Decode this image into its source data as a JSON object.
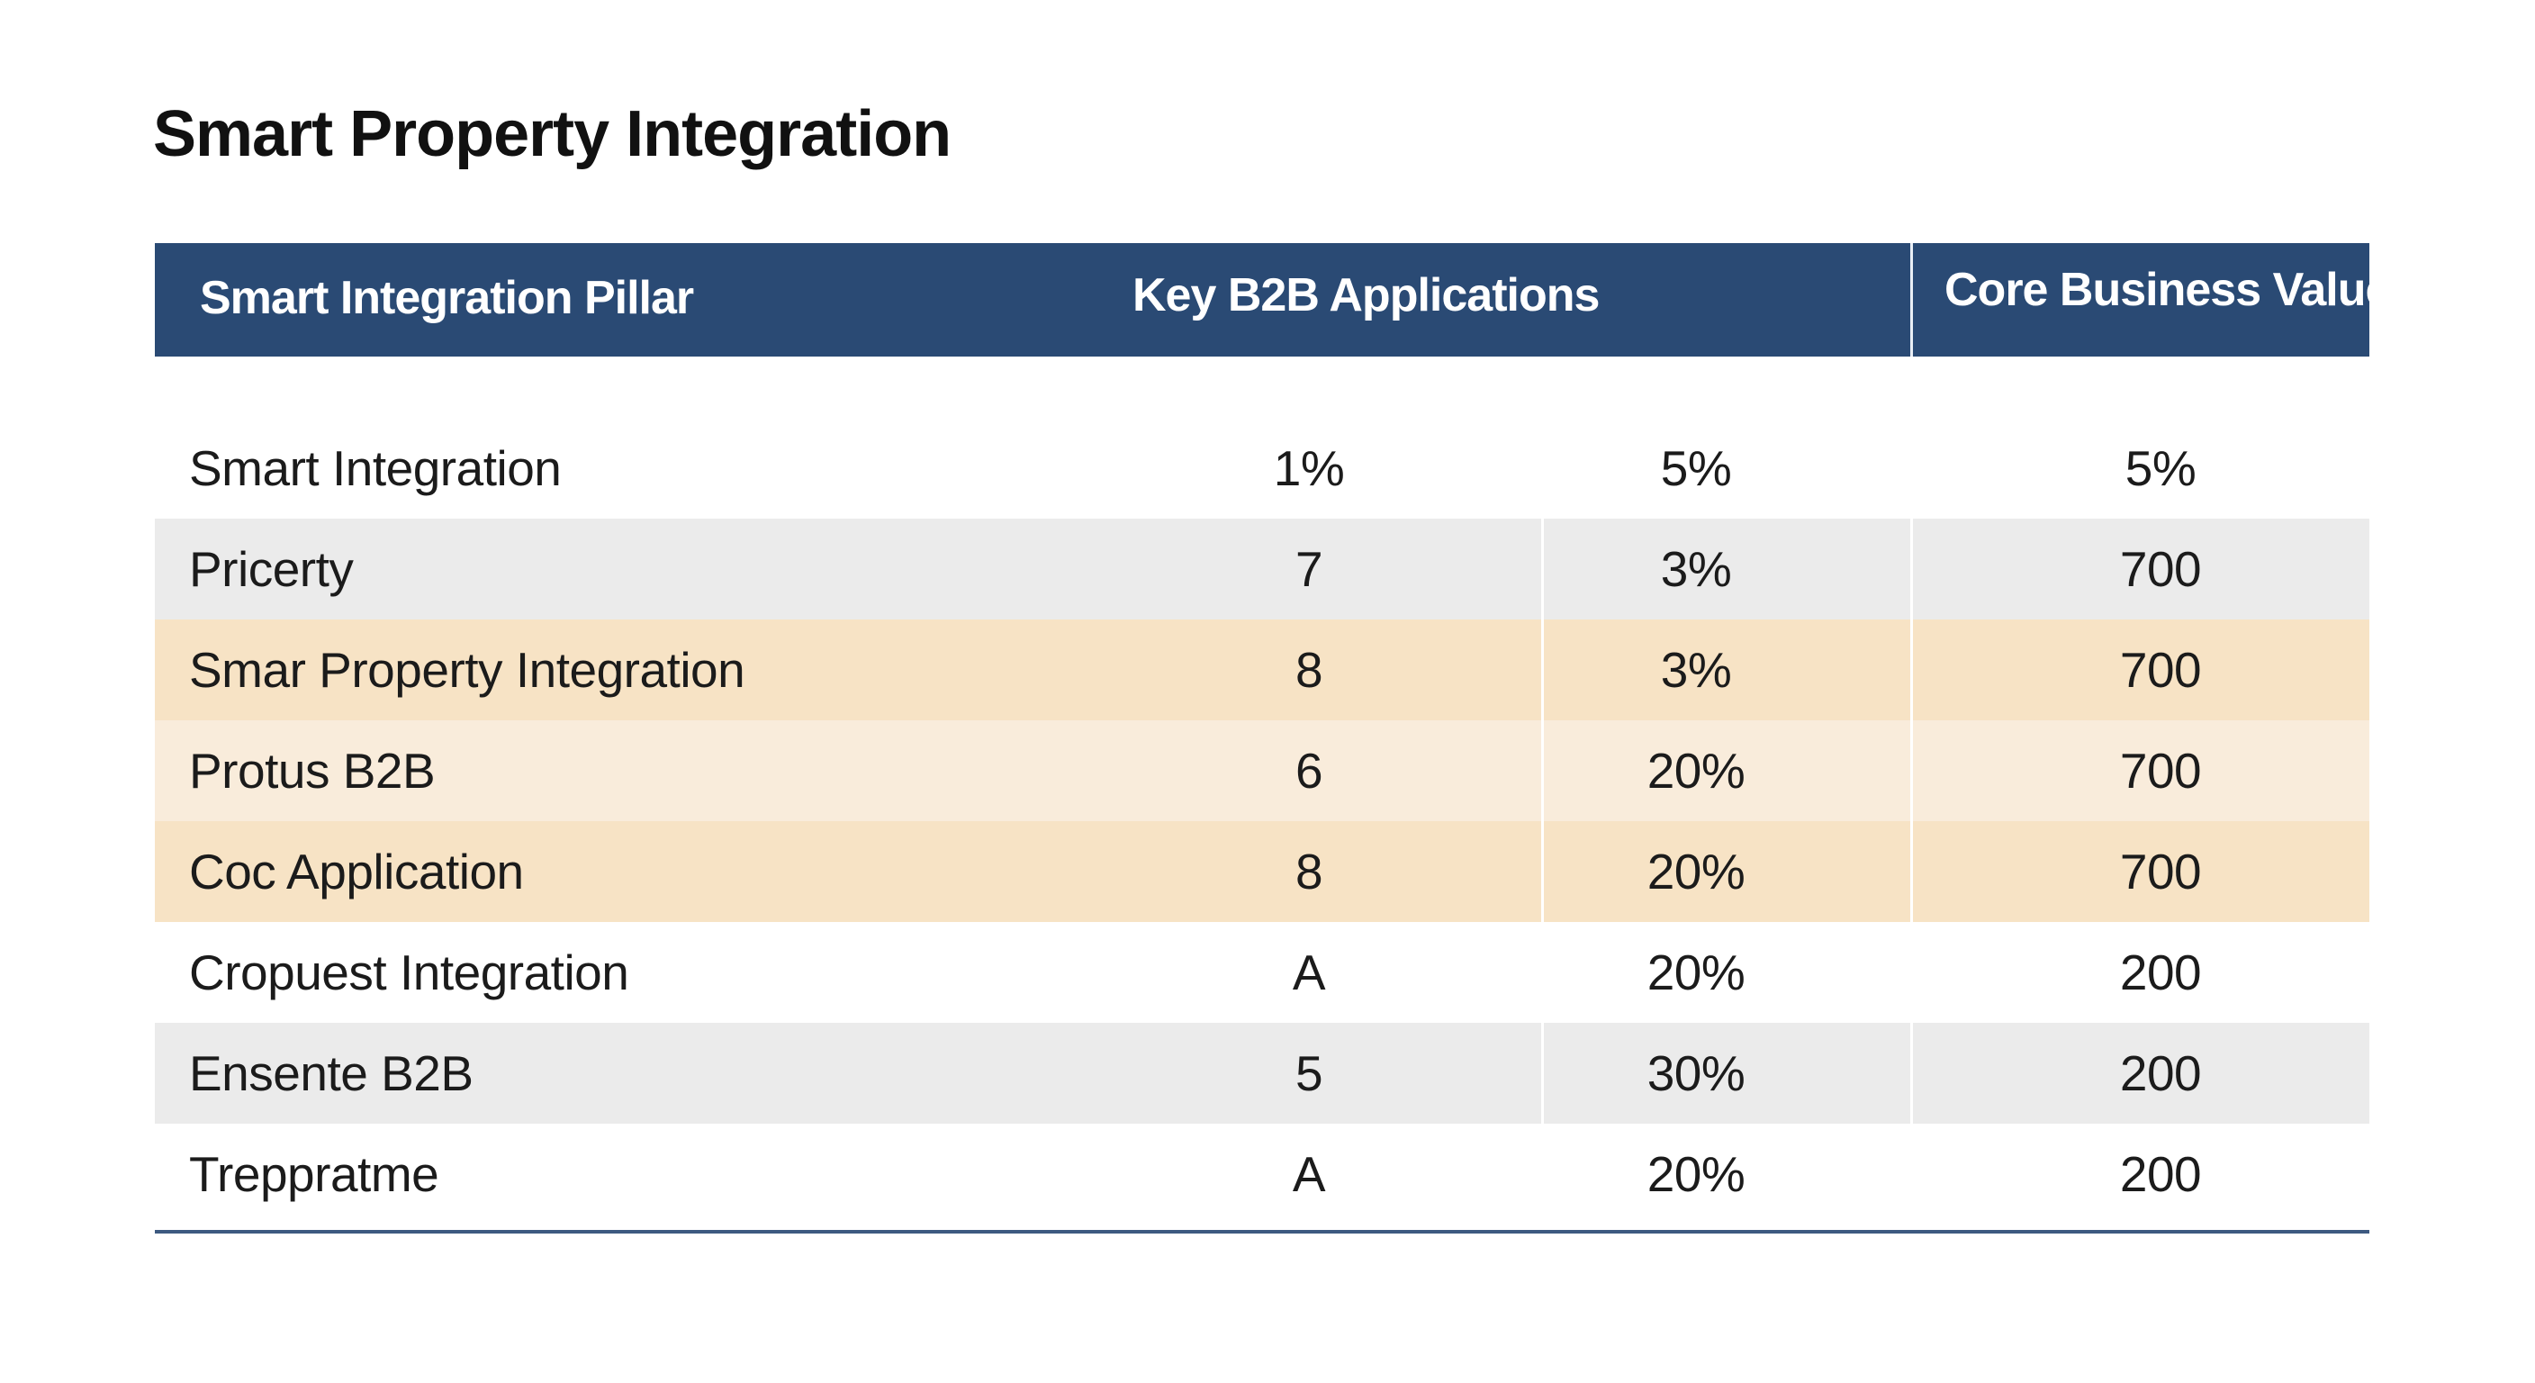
{
  "title": "Smart Property Integration",
  "table": {
    "headers": [
      "Smart Integration Pillar",
      "Key B2B Applications",
      "Core Business Value"
    ],
    "rows": [
      {
        "name": "Smart Integration",
        "v1": "1%",
        "v2": "5%",
        "v3": "5%",
        "bg": "white"
      },
      {
        "name": "Pricerty",
        "v1": "7",
        "v2": "3%",
        "v3": "700",
        "bg": "gray"
      },
      {
        "name": "Smar Property Integration",
        "v1": "8",
        "v2": "3%",
        "v3": "700",
        "bg": "peach"
      },
      {
        "name": "Protus B2B",
        "v1": "6",
        "v2": "20%",
        "v3": "700",
        "bg": "cream"
      },
      {
        "name": "Coc Application",
        "v1": "8",
        "v2": "20%",
        "v3": "700",
        "bg": "peach"
      },
      {
        "name": "Cropuest Integration",
        "v1": "A",
        "v2": "20%",
        "v3": "200",
        "bg": "white"
      },
      {
        "name": "Ensente B2B",
        "v1": "5",
        "v2": "30%",
        "v3": "200",
        "bg": "gray"
      },
      {
        "name": "Treppratme",
        "v1": "A",
        "v2": "20%",
        "v3": "200",
        "bg": "white"
      }
    ]
  },
  "colors": {
    "header_bg": "#2a4a74",
    "row_gray": "#ebebeb",
    "row_peach": "#f7e3c5",
    "row_cream": "#f9ecdb",
    "rule": "#3d5a80"
  }
}
